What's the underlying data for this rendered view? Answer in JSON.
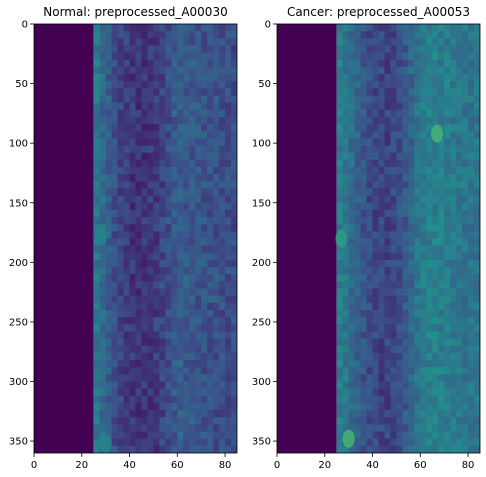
{
  "chart_data": [
    {
      "type": "heatmap",
      "title": "Normal: preprocessed_A00030",
      "xlim": [
        0,
        85
      ],
      "ylim": [
        360,
        0
      ],
      "xticks": [
        0,
        20,
        40,
        60,
        80
      ],
      "yticks": [
        0,
        50,
        100,
        150,
        200,
        250,
        300,
        350
      ],
      "colormap": "viridis",
      "dark_band_x": [
        0,
        25
      ],
      "profile": {
        "x": [
          25,
          30,
          35,
          40,
          45,
          50,
          55,
          60,
          65,
          70,
          75,
          80,
          85
        ],
        "level": [
          0.42,
          0.32,
          0.22,
          0.17,
          0.15,
          0.17,
          0.22,
          0.3,
          0.28,
          0.26,
          0.25,
          0.24,
          0.24
        ]
      },
      "highlights": [
        {
          "x": 28,
          "y": 178,
          "level": 0.45
        },
        {
          "x": 30,
          "y": 352,
          "level": 0.45
        }
      ]
    },
    {
      "type": "heatmap",
      "title": "Cancer: preprocessed_A00053",
      "xlim": [
        0,
        85
      ],
      "ylim": [
        360,
        0
      ],
      "xticks": [
        0,
        20,
        40,
        60,
        80
      ],
      "yticks": [
        0,
        50,
        100,
        150,
        200,
        250,
        300,
        350
      ],
      "colormap": "viridis",
      "dark_band_x": [
        0,
        25
      ],
      "profile": {
        "x": [
          25,
          30,
          35,
          40,
          45,
          50,
          55,
          60,
          65,
          70,
          75,
          80,
          85
        ],
        "level": [
          0.45,
          0.38,
          0.28,
          0.22,
          0.2,
          0.22,
          0.3,
          0.4,
          0.44,
          0.42,
          0.4,
          0.38,
          0.38
        ]
      },
      "highlights": [
        {
          "x": 30,
          "y": 348,
          "level": 0.65
        },
        {
          "x": 67,
          "y": 92,
          "level": 0.65
        },
        {
          "x": 27,
          "y": 180,
          "level": 0.55
        }
      ]
    }
  ]
}
